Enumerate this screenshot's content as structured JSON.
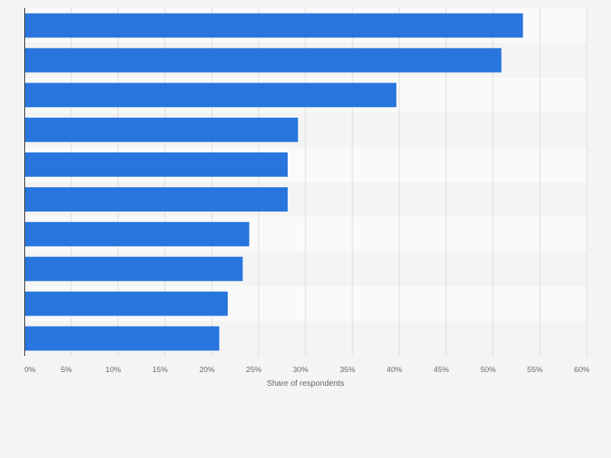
{
  "chart_data": {
    "type": "bar",
    "orientation": "horizontal",
    "categories": [
      "",
      "",
      "",
      "",
      "",
      "",
      "",
      "",
      "",
      ""
    ],
    "values": [
      53.2,
      50.9,
      39.7,
      29.2,
      28.1,
      28.1,
      24.0,
      23.3,
      21.7,
      20.8
    ],
    "xlabel": "Share of respondents",
    "ylabel": "",
    "xlim": [
      0,
      60
    ],
    "ticks": [
      {
        "value": 0,
        "label": "0%"
      },
      {
        "value": 5,
        "label": "5%"
      },
      {
        "value": 10,
        "label": "10%"
      },
      {
        "value": 15,
        "label": "15%"
      },
      {
        "value": 20,
        "label": "20%"
      },
      {
        "value": 25,
        "label": "25%"
      },
      {
        "value": 30,
        "label": "30%"
      },
      {
        "value": 35,
        "label": "35%"
      },
      {
        "value": 40,
        "label": "40%"
      },
      {
        "value": 45,
        "label": "45%"
      },
      {
        "value": 50,
        "label": "50%"
      },
      {
        "value": 55,
        "label": "55%"
      },
      {
        "value": 60,
        "label": "60%"
      }
    ],
    "grid": true,
    "legend": "none",
    "colors": {
      "bar": "#2876dd",
      "band_light": "#fafafa",
      "band_dark": "#f4f4f4",
      "grid": "#dddddd",
      "axis": "#333333",
      "tick_text": "#666666"
    }
  }
}
